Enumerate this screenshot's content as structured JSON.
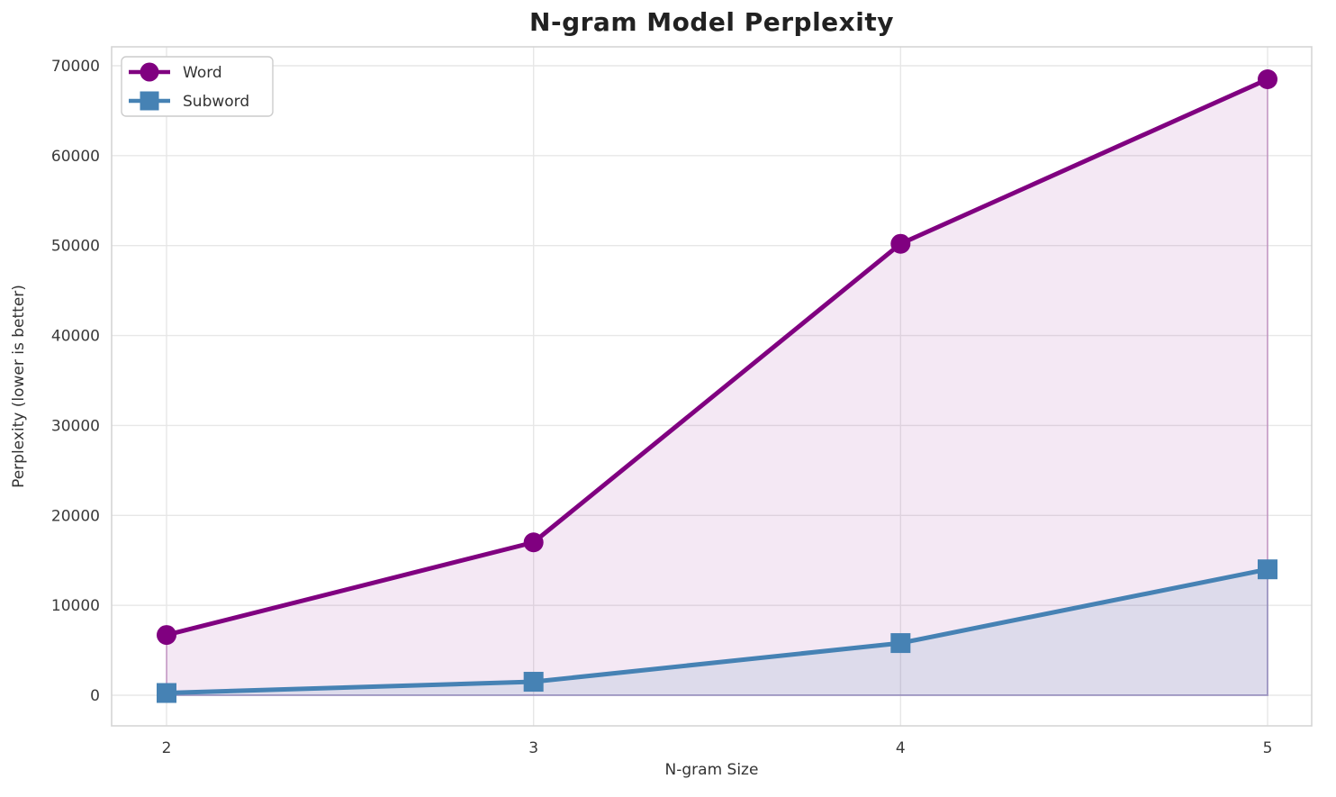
{
  "title": "N-gram Model Perplexity",
  "chart_data": {
    "type": "line",
    "x": [
      2,
      3,
      4,
      5
    ],
    "series": [
      {
        "name": "Word",
        "values": [
          6700,
          17000,
          50200,
          68500
        ],
        "color": "#800080",
        "marker": "circle",
        "fill_alpha": 0.09
      },
      {
        "name": "Subword",
        "values": [
          250,
          1500,
          5800,
          14000
        ],
        "color": "#4682B4",
        "marker": "square",
        "fill_alpha": 0.13
      }
    ],
    "title": "N-gram Model Perplexity",
    "xlabel": "N-gram Size",
    "ylabel": "Perplexity (lower is better)",
    "xticks": [
      2,
      3,
      4,
      5
    ],
    "yticks": [
      0,
      10000,
      20000,
      30000,
      40000,
      50000,
      60000,
      70000
    ],
    "xlim": [
      2,
      5
    ],
    "ylim": [
      0,
      70000
    ],
    "grid": true,
    "legend_position": "upper left",
    "legend_labels": [
      "Word",
      "Subword"
    ],
    "colors": {
      "word_line": "#800080",
      "subword_line": "#4682B4",
      "gridline": "#e7e7e7",
      "plot_border": "#d5d5d5",
      "tick_text": "#3a3a3a",
      "title_text": "#212121",
      "background": "#ffffff"
    }
  }
}
